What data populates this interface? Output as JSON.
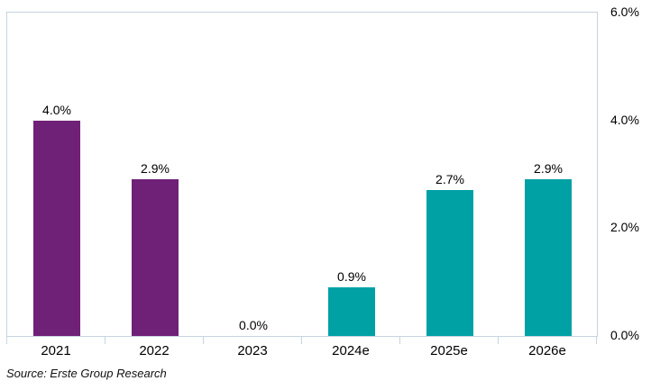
{
  "chart_data": {
    "type": "bar",
    "categories": [
      "2021",
      "2022",
      "2023",
      "2024e",
      "2025e",
      "2026e"
    ],
    "values": [
      4.0,
      2.9,
      0.0,
      0.9,
      2.7,
      2.9
    ],
    "value_labels": [
      "4.0%",
      "2.9%",
      "0.0%",
      "0.9%",
      "2.7%",
      "2.9%"
    ],
    "bar_colors": [
      "#6F2077",
      "#6F2077",
      "#6F2077",
      "#00A1A5",
      "#00A1A5",
      "#00A1A5"
    ],
    "title": "",
    "xlabel": "",
    "ylabel": "",
    "ylim": [
      0,
      6
    ],
    "y_ticks": [
      {
        "value": 0,
        "label": "0.0%"
      },
      {
        "value": 2,
        "label": "2.0%"
      },
      {
        "value": 4,
        "label": "4.0%"
      },
      {
        "value": 6,
        "label": "6.0%"
      }
    ],
    "y_axis_side": "right",
    "grid": false,
    "legend": "none"
  },
  "source_note": "Source: Erste Group Research",
  "colors": {
    "series_historical": "#6F2077",
    "series_estimate": "#00A1A5",
    "axis_line": "#C6D4DE",
    "label_text": "#000000",
    "background": "#FFFFFF"
  }
}
